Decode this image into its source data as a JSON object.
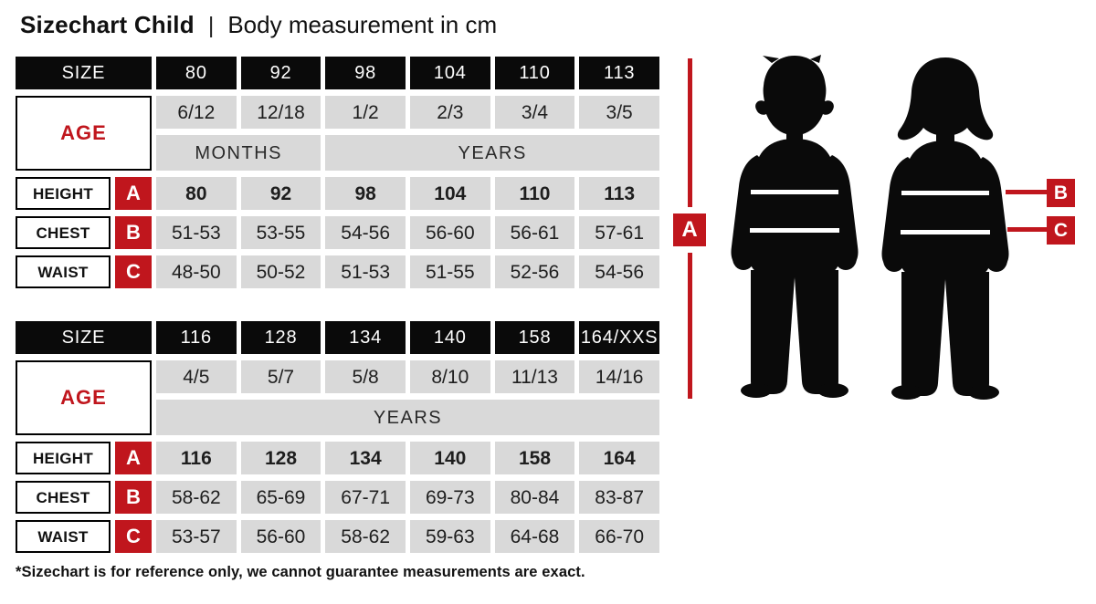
{
  "title": {
    "main": "Sizechart Child",
    "separator": "|",
    "subtitle": "Body measurement in cm"
  },
  "labels": {
    "size": "SIZE",
    "age": "AGE",
    "height": "HEIGHT",
    "chest": "CHEST",
    "waist": "WAIST"
  },
  "markers": {
    "a": "A",
    "b": "B",
    "c": "C"
  },
  "colors": {
    "accent_red": "#c0161d",
    "header_black": "#0a0a0a",
    "cell_gray": "#d9d9d9",
    "text_dark": "#1e1e1e"
  },
  "icons": {
    "boy": "boy-silhouette",
    "girl": "girl-silhouette"
  },
  "chart_data": [
    {
      "type": "table",
      "sizes": [
        "80",
        "92",
        "98",
        "104",
        "110",
        "113"
      ],
      "ages": [
        "6/12",
        "12/18",
        "1/2",
        "2/3",
        "3/4",
        "3/5"
      ],
      "age_units": [
        {
          "label": "MONTHS",
          "span": 2
        },
        {
          "label": "YEARS",
          "span": 4
        }
      ],
      "height": [
        "80",
        "92",
        "98",
        "104",
        "110",
        "113"
      ],
      "chest": [
        "51-53",
        "53-55",
        "54-56",
        "56-60",
        "56-61",
        "57-61"
      ],
      "waist": [
        "48-50",
        "50-52",
        "51-53",
        "51-55",
        "52-56",
        "54-56"
      ]
    },
    {
      "type": "table",
      "sizes": [
        "116",
        "128",
        "134",
        "140",
        "158",
        "164/XXS"
      ],
      "ages": [
        "4/5",
        "5/7",
        "5/8",
        "8/10",
        "11/13",
        "14/16"
      ],
      "age_units": [
        {
          "label": "YEARS",
          "span": 6
        }
      ],
      "height": [
        "116",
        "128",
        "134",
        "140",
        "158",
        "164"
      ],
      "chest": [
        "58-62",
        "65-69",
        "67-71",
        "69-73",
        "80-84",
        "83-87"
      ],
      "waist": [
        "53-57",
        "56-60",
        "58-62",
        "59-63",
        "64-68",
        "66-70"
      ]
    }
  ],
  "footnote": "*Sizechart is for reference only, we cannot guarantee measurements are exact."
}
